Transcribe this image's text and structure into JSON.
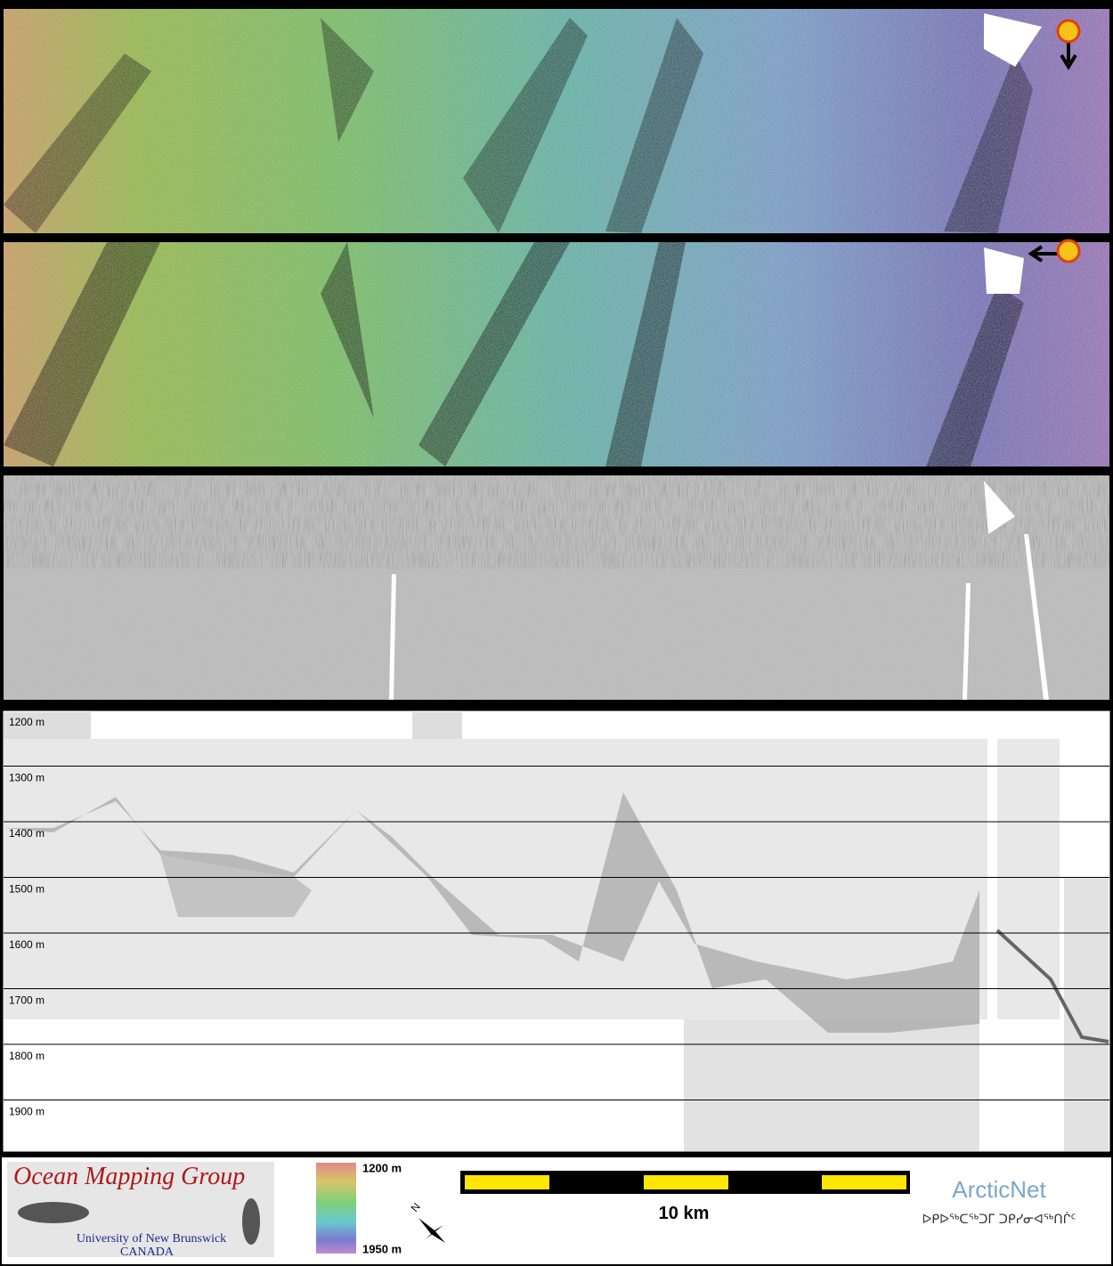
{
  "panels": {
    "depth_labels": [
      "1200 m",
      "1300 m",
      "1400 m",
      "1500 m",
      "1600 m",
      "1700 m",
      "1800 m",
      "1900 m"
    ]
  },
  "footer": {
    "logo": {
      "title": "Ocean Mapping Group",
      "university": "University of New Brunswick",
      "country": "CANADA"
    },
    "colorbar": {
      "top": "1200 m",
      "bottom": "1950 m"
    },
    "north": "N",
    "scale": "10 km",
    "partner": {
      "name": "ArcticNet",
      "inuktitut": "ᐅᑭᐅᖅᑕᖅᑐᒥ ᑐᑭᓯᓂᐊᖅᑎᒌᑦ"
    }
  }
}
